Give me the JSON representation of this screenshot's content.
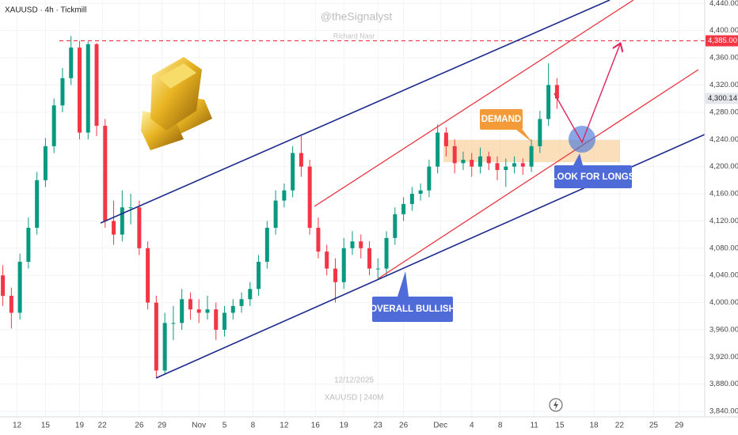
{
  "chart_data": {
    "type": "candlestick",
    "title": "XAUUSD · 4h · Tickmill",
    "watermark": "@theSignalyst",
    "author": "Richard Nasr",
    "date_stamp": "12/12/2025",
    "symbol_stamp": "XAUUSD | 240M",
    "up_color": "#089981",
    "down_color": "#f23645",
    "x": [
      1,
      4,
      7,
      10,
      13,
      16,
      19,
      22,
      25,
      28,
      31,
      34,
      37,
      40,
      43,
      46,
      49,
      52,
      55,
      58,
      61,
      64,
      67,
      70,
      73,
      76,
      79,
      82,
      85,
      88,
      91,
      94,
      97,
      100,
      103,
      106,
      109,
      112,
      115,
      118,
      121,
      124,
      127,
      130,
      133,
      136,
      139,
      142,
      145,
      148,
      151,
      154,
      157,
      160,
      163,
      166,
      169,
      172,
      175,
      178,
      181,
      184,
      187,
      190,
      193,
      196
    ],
    "open": [
      4040,
      4010,
      3985,
      4060,
      4110,
      4180,
      4230,
      4290,
      4330,
      4375,
      4250,
      4380,
      4260,
      4120,
      4100,
      4140,
      4140,
      4080,
      4000,
      3900,
      3970,
      3970,
      4005,
      3990,
      3985,
      3990,
      3960,
      3985,
      3995,
      4005,
      4020,
      4060,
      4110,
      4150,
      4165,
      4220,
      4200,
      4110,
      4075,
      4050,
      4030,
      4080,
      4090,
      4080,
      4050,
      4050,
      4095,
      4130,
      4145,
      4160,
      4165,
      4200,
      4250,
      4230,
      4205,
      4210,
      4200,
      4215,
      4205,
      4195,
      4200,
      4205,
      4200,
      4230,
      4270,
      4320
    ],
    "high": [
      4055,
      4022,
      4072,
      4125,
      4192,
      4242,
      4300,
      4345,
      4392,
      4385,
      4384,
      4382,
      4270,
      4150,
      4165,
      4160,
      4150,
      4090,
      4010,
      3985,
      3995,
      4020,
      4015,
      4005,
      4010,
      4000,
      3995,
      4005,
      4015,
      4030,
      4070,
      4120,
      4165,
      4175,
      4230,
      4245,
      4210,
      4125,
      4085,
      4065,
      4095,
      4105,
      4100,
      4090,
      4065,
      4105,
      4140,
      4155,
      4170,
      4175,
      4210,
      4262,
      4258,
      4240,
      4222,
      4220,
      4228,
      4222,
      4215,
      4212,
      4215,
      4212,
      4240,
      4282,
      4352,
      4330
    ],
    "low": [
      3995,
      3962,
      3975,
      4050,
      4100,
      4170,
      4220,
      4280,
      4320,
      4240,
      4240,
      4245,
      4110,
      4085,
      4090,
      4115,
      4070,
      3990,
      3890,
      3895,
      3945,
      3960,
      3975,
      3970,
      3975,
      3945,
      3950,
      3975,
      3985,
      3995,
      4010,
      4050,
      4100,
      4140,
      4155,
      4185,
      4100,
      4065,
      4040,
      4000,
      4020,
      4070,
      4065,
      4040,
      4035,
      4040,
      4085,
      4120,
      4135,
      4150,
      4155,
      4190,
      4215,
      4190,
      4195,
      4185,
      4190,
      4195,
      4180,
      4170,
      4190,
      4188,
      4192,
      4220,
      4260,
      4285
    ],
    "close": [
      4010,
      3985,
      4060,
      4110,
      4180,
      4230,
      4290,
      4330,
      4375,
      4250,
      4380,
      4260,
      4120,
      4100,
      4140,
      4140,
      4080,
      4000,
      3900,
      3970,
      3970,
      4005,
      3990,
      3985,
      3990,
      3960,
      3985,
      3995,
      4005,
      4020,
      4060,
      4110,
      4150,
      4165,
      4220,
      4200,
      4110,
      4075,
      4050,
      4030,
      4080,
      4090,
      4080,
      4050,
      4050,
      4095,
      4130,
      4145,
      4160,
      4165,
      4200,
      4250,
      4230,
      4205,
      4210,
      4200,
      4215,
      4205,
      4195,
      4200,
      4205,
      4200,
      4230,
      4270,
      4320,
      4300
    ],
    "xlim": [
      0,
      248
    ],
    "xticks": [
      {
        "value": 6,
        "label": "12"
      },
      {
        "value": 16,
        "label": "15"
      },
      {
        "value": 28,
        "label": "19"
      },
      {
        "value": 36,
        "label": "22"
      },
      {
        "value": 49,
        "label": "26"
      },
      {
        "value": 57,
        "label": "29"
      },
      {
        "value": 70,
        "label": "Nov"
      },
      {
        "value": 79,
        "label": "5"
      },
      {
        "value": 89,
        "label": "8"
      },
      {
        "value": 100,
        "label": "12"
      },
      {
        "value": 111,
        "label": "16"
      },
      {
        "value": 121,
        "label": "19"
      },
      {
        "value": 133,
        "label": "23"
      },
      {
        "value": 142,
        "label": "26"
      },
      {
        "value": 155,
        "label": "Dec"
      },
      {
        "value": 166,
        "label": "4"
      },
      {
        "value": 176,
        "label": "8"
      },
      {
        "value": 188,
        "label": "11"
      },
      {
        "value": 197,
        "label": "15"
      },
      {
        "value": 209,
        "label": "18"
      },
      {
        "value": 218,
        "label": "22"
      },
      {
        "value": 230,
        "label": "25"
      },
      {
        "value": 239,
        "label": "29"
      }
    ],
    "ylim": [
      3832,
      4445
    ],
    "yticks": [
      {
        "value": 3840,
        "label": "3,840.00"
      },
      {
        "value": 3880,
        "label": "3,880.00"
      },
      {
        "value": 3920,
        "label": "3,920.00"
      },
      {
        "value": 3960,
        "label": "3,960.00"
      },
      {
        "value": 4000,
        "label": "4,000.00"
      },
      {
        "value": 4040,
        "label": "4,040.00"
      },
      {
        "value": 4080,
        "label": "4,080.00"
      },
      {
        "value": 4120,
        "label": "4,120.00"
      },
      {
        "value": 4160,
        "label": "4,160.00"
      },
      {
        "value": 4200,
        "label": "4,200.00"
      },
      {
        "value": 4240,
        "label": "4,240.00"
      },
      {
        "value": 4280,
        "label": "4,280.00"
      },
      {
        "value": 4320,
        "label": "4,320.00"
      },
      {
        "value": 4360,
        "label": "4,360.00"
      },
      {
        "value": 4400,
        "label": "4,400.00"
      },
      {
        "value": 4440,
        "label": "4,440.00"
      }
    ],
    "price_lines": [
      {
        "value": 4385,
        "label": "4,385.00",
        "color": "#f23645",
        "line": true
      },
      {
        "value": 4300.14,
        "label": "4,300.14",
        "color": "#e4e6eb",
        "line": false
      }
    ],
    "annotations": [
      "DEMAND",
      "LOOK FOR LONGS",
      "OVERALL BULLISH"
    ]
  }
}
